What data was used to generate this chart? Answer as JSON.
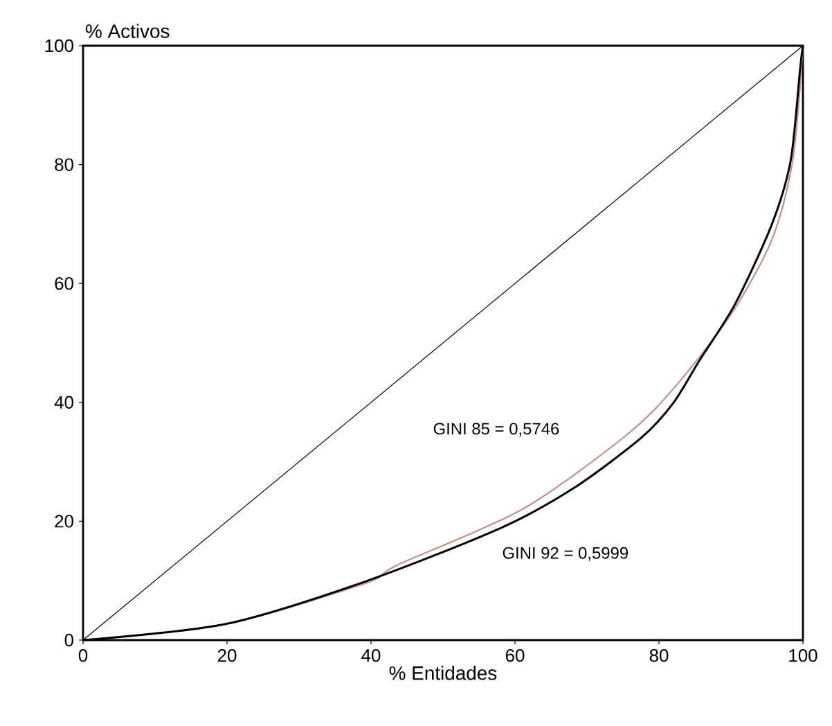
{
  "chart_data": {
    "type": "line",
    "xlabel": "% Entidades",
    "ylabel": "% Activos",
    "xlim": [
      0,
      100
    ],
    "ylim": [
      0,
      100
    ],
    "xticks": [
      0,
      20,
      40,
      60,
      80,
      100
    ],
    "yticks": [
      0,
      20,
      40,
      60,
      80,
      100
    ],
    "grid": false,
    "marker": "none",
    "line_style": "solid",
    "series": [
      {
        "color": "#000000",
        "x": [
          0,
          100
        ],
        "values": [
          0,
          100
        ]
      },
      {
        "name": "GINI 85 = 0,5746",
        "color": "#c09088",
        "x": [
          0,
          19.8,
          39.3,
          43.6,
          61,
          75.5,
          82.3,
          90,
          95.7,
          98.6,
          100
        ],
        "values": [
          0,
          2.7,
          9.6,
          12.6,
          22,
          34.5,
          42.7,
          54.8,
          67.4,
          80.9,
          100
        ]
      },
      {
        "name": "GINI 92 = 0,5999",
        "color": "#000000",
        "x": [
          0,
          19.8,
          39.3,
          58.1,
          68.2,
          77.6,
          82,
          85.6,
          90.6,
          95.7,
          98.3,
          99.6,
          100
        ],
        "values": [
          0,
          2.7,
          9.9,
          18.9,
          25.6,
          34.1,
          39.9,
          47,
          56.6,
          70,
          80.7,
          96,
          100
        ]
      }
    ]
  }
}
